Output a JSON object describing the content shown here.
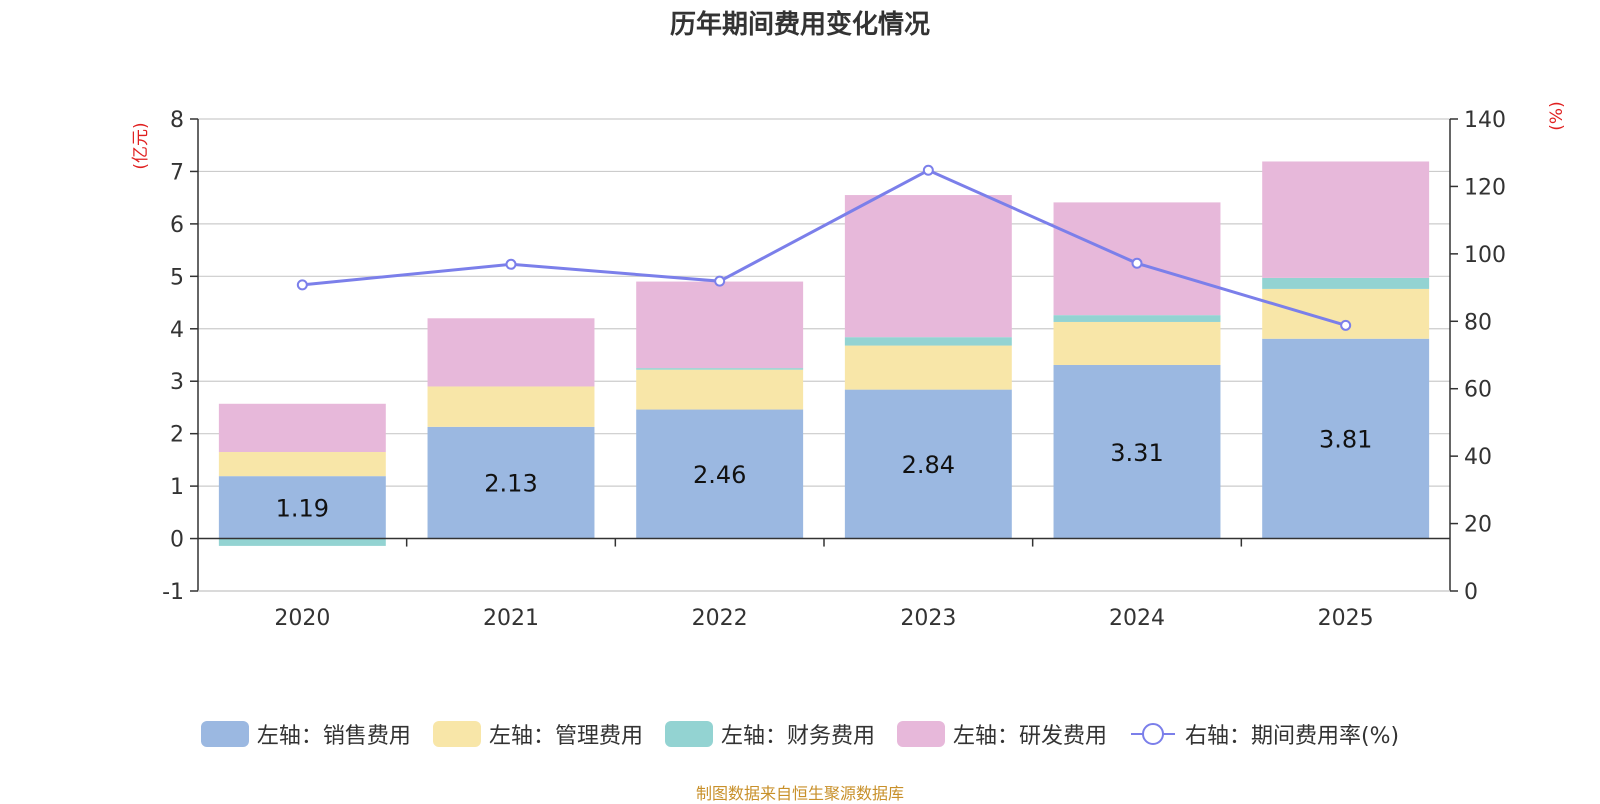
{
  "chart_data": {
    "type": "bar",
    "title": "历年期间费用变化情况",
    "categories": [
      "2020",
      "2021",
      "2022",
      "2023",
      "2024",
      "2025"
    ],
    "y_left": {
      "label": "(亿元)",
      "min": -1,
      "max": 8,
      "ticks": [
        -1,
        0,
        1,
        2,
        3,
        4,
        5,
        6,
        7,
        8
      ]
    },
    "y_right": {
      "label": "(%)",
      "min": 0,
      "max": 140,
      "ticks": [
        0,
        20,
        40,
        60,
        80,
        100,
        120,
        140
      ]
    },
    "series": [
      {
        "name": "左轴：销售费用",
        "type": "stacked-bar",
        "axis": "left",
        "color": "#9bb8e1",
        "values": [
          1.19,
          2.13,
          2.46,
          2.84,
          3.31,
          3.81
        ],
        "show_labels": true
      },
      {
        "name": "左轴：管理费用",
        "type": "stacked-bar",
        "axis": "left",
        "color": "#f8e6a8",
        "values": [
          0.46,
          0.77,
          0.76,
          0.84,
          0.82,
          0.95
        ]
      },
      {
        "name": "左轴：财务费用",
        "type": "stacked-bar",
        "axis": "left",
        "color": "#93d3d2",
        "values": [
          -0.14,
          0.0,
          0.03,
          0.16,
          0.13,
          0.21
        ]
      },
      {
        "name": "左轴：研发费用",
        "type": "stacked-bar",
        "axis": "left",
        "color": "#e7b8da",
        "values": [
          0.92,
          1.3,
          1.65,
          2.71,
          2.15,
          2.22
        ]
      },
      {
        "name": "右轴：期间费用率(%)",
        "type": "line",
        "axis": "right",
        "color": "#7b7fea",
        "values": [
          90.8,
          96.9,
          91.9,
          124.8,
          97.2,
          78.8
        ]
      }
    ],
    "grid": true,
    "legend_position": "bottom"
  },
  "source": "制图数据来自恒生聚源数据库"
}
